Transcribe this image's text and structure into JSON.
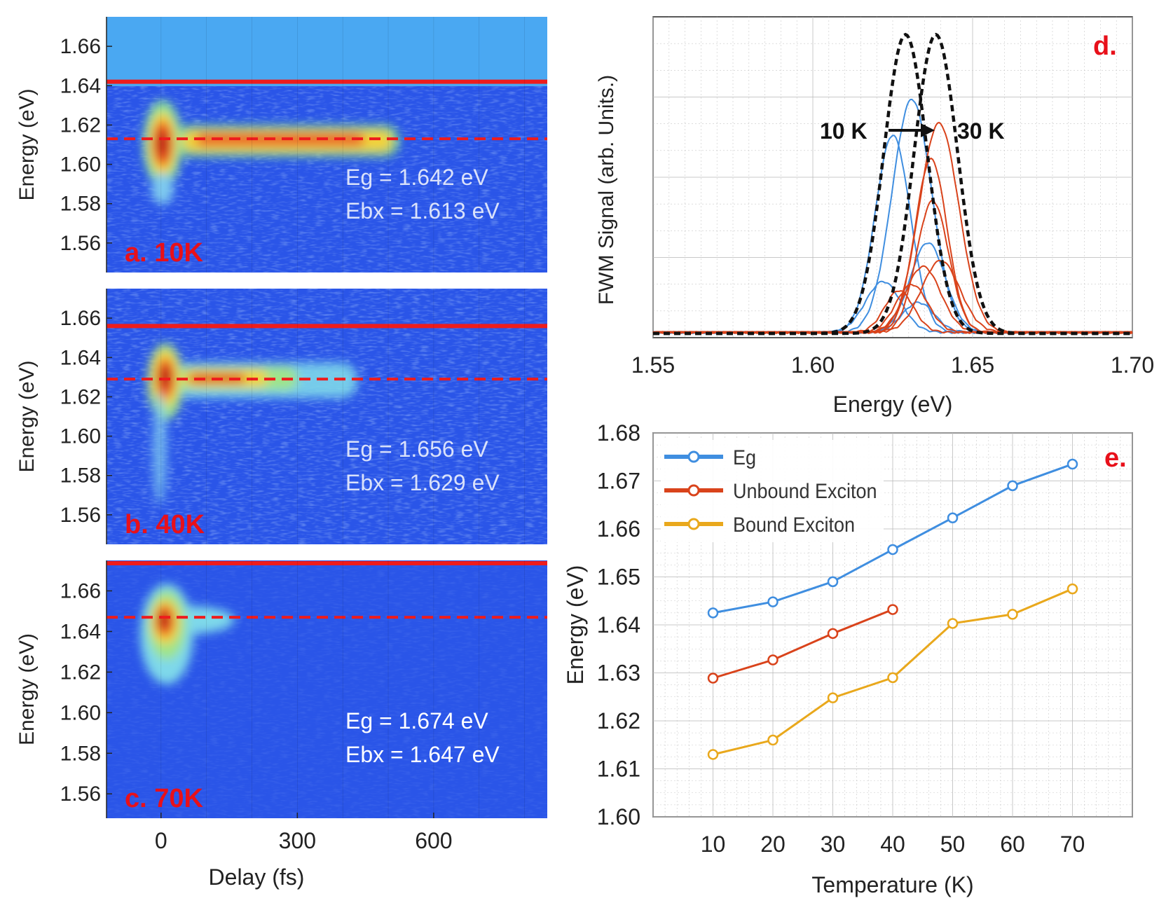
{
  "colors": {
    "blue": "#3f8ee0",
    "red": "#d9431b",
    "orange": "#e9a81c",
    "label_red": "#e8101a",
    "map_bg": "#2a55e8",
    "map_top": "#4aa8f2",
    "black": "#111111",
    "text": "#222222"
  },
  "chart_data": [
    {
      "id": "panel-a",
      "type": "heatmap",
      "panel_label": "a. 10K",
      "ylabel": "Energy (eV)",
      "xlabel": "",
      "xlim": [
        -120,
        850
      ],
      "ylim": [
        1.545,
        1.675
      ],
      "y_ticks": [
        "1.66",
        "1.64",
        "1.62",
        "1.60",
        "1.58",
        "1.56"
      ],
      "y_tick_values": [
        1.66,
        1.64,
        1.62,
        1.6,
        1.58,
        1.56
      ],
      "x_ticks": [],
      "eg_line": 1.642,
      "ebx_line": 1.613,
      "annotation_eg": "Eg = 1.642 eV",
      "annotation_ebx": "Ebx = 1.613 eV",
      "signal": {
        "peak_energy": 1.613,
        "peak_delay": 0,
        "band_until": 520
      }
    },
    {
      "id": "panel-b",
      "type": "heatmap",
      "panel_label": "b. 40K",
      "ylabel": "Energy (eV)",
      "xlabel": "",
      "xlim": [
        -120,
        850
      ],
      "ylim": [
        1.545,
        1.675
      ],
      "y_ticks": [
        "1.66",
        "1.64",
        "1.62",
        "1.60",
        "1.58",
        "1.56"
      ],
      "y_tick_values": [
        1.66,
        1.64,
        1.62,
        1.6,
        1.58,
        1.56
      ],
      "x_ticks": [],
      "eg_line": 1.656,
      "ebx_line": 1.629,
      "annotation_eg": "Eg = 1.656 eV",
      "annotation_ebx": "Ebx = 1.629 eV",
      "signal": {
        "peak_energy": 1.63,
        "peak_delay": 0,
        "band_until": 400
      }
    },
    {
      "id": "panel-c",
      "type": "heatmap",
      "panel_label": "c. 70K",
      "ylabel": "Energy (eV)",
      "xlabel": "Delay (fs)",
      "xlim": [
        -120,
        850
      ],
      "ylim": [
        1.548,
        1.675
      ],
      "y_ticks": [
        "1.66",
        "1.64",
        "1.62",
        "1.60",
        "1.58",
        "1.56"
      ],
      "y_tick_values": [
        1.66,
        1.64,
        1.62,
        1.6,
        1.58,
        1.56
      ],
      "x_ticks": [
        "0",
        "300",
        "600"
      ],
      "x_tick_values": [
        0,
        300,
        600
      ],
      "eg_line": 1.674,
      "ebx_line": 1.647,
      "annotation_eg": "Eg = 1.674 eV",
      "annotation_ebx": "Ebx = 1.647 eV",
      "signal": {
        "peak_energy": 1.648,
        "peak_delay": 0,
        "band_until": 150
      }
    },
    {
      "id": "panel-d",
      "type": "line",
      "panel_label": "d.",
      "xlabel": "Energy (eV)",
      "ylabel": "FWM Signal (arb. Units.)",
      "xlim": [
        1.55,
        1.7
      ],
      "ylim": [
        0,
        1.05
      ],
      "x_ticks": [
        "1.55",
        "1.60",
        "1.65",
        "1.70"
      ],
      "x_tick_values": [
        1.55,
        1.6,
        1.65,
        1.7
      ],
      "arrow_from": "10 K",
      "arrow_to": "30 K",
      "series": [
        {
          "name": "10 K envelope",
          "color": "black",
          "dashed": true,
          "center": 1.629,
          "width": 0.0068,
          "amp": 1.0
        },
        {
          "name": "30 K envelope",
          "color": "black",
          "dashed": true,
          "center": 1.6385,
          "width": 0.0068,
          "amp": 1.0
        },
        {
          "name": "10 K component 1",
          "color": "blue",
          "center": 1.631,
          "width": 0.0062,
          "amp": 0.78
        },
        {
          "name": "10 K component 2",
          "color": "blue",
          "center": 1.625,
          "width": 0.0055,
          "amp": 0.66
        },
        {
          "name": "10 K component 3",
          "color": "blue",
          "center": 1.636,
          "width": 0.0055,
          "amp": 0.3
        },
        {
          "name": "10 K component 4",
          "color": "blue",
          "center": 1.622,
          "width": 0.0055,
          "amp": 0.17
        },
        {
          "name": "10 K component 5",
          "color": "blue",
          "center": 1.633,
          "width": 0.005,
          "amp": 0.1
        },
        {
          "name": "30 K component 1",
          "color": "red",
          "center": 1.6395,
          "width": 0.0062,
          "amp": 0.7
        },
        {
          "name": "30 K component 2",
          "color": "red",
          "center": 1.637,
          "width": 0.005,
          "amp": 0.58
        },
        {
          "name": "30 K component 3",
          "color": "red",
          "center": 1.6375,
          "width": 0.005,
          "amp": 0.44
        },
        {
          "name": "30 K component 4",
          "color": "red",
          "center": 1.6345,
          "width": 0.0055,
          "amp": 0.22
        },
        {
          "name": "30 K component 5",
          "color": "red",
          "center": 1.64,
          "width": 0.006,
          "amp": 0.24
        },
        {
          "name": "30 K component 6",
          "color": "red",
          "center": 1.627,
          "width": 0.0045,
          "amp": 0.14
        },
        {
          "name": "30 K component 7",
          "color": "red",
          "center": 1.631,
          "width": 0.005,
          "amp": 0.16
        }
      ]
    },
    {
      "id": "panel-e",
      "type": "line",
      "panel_label": "e.",
      "xlabel": "Temperature (K)",
      "ylabel": "Energy (eV)",
      "xlim": [
        0,
        80
      ],
      "ylim": [
        1.6,
        1.68
      ],
      "x_ticks": [
        "10",
        "20",
        "30",
        "40",
        "50",
        "60",
        "70"
      ],
      "x_tick_values": [
        10,
        20,
        30,
        40,
        50,
        60,
        70
      ],
      "y_ticks": [
        "1.68",
        "1.67",
        "1.66",
        "1.65",
        "1.64",
        "1.63",
        "1.62",
        "1.61",
        "1.60"
      ],
      "y_tick_values": [
        1.68,
        1.67,
        1.66,
        1.65,
        1.64,
        1.63,
        1.62,
        1.61,
        1.6
      ],
      "legend_position": "top-left",
      "series": [
        {
          "name": "Eg",
          "color": "blue",
          "x": [
            10,
            20,
            30,
            40,
            50,
            60,
            70
          ],
          "y": [
            1.6425,
            1.6448,
            1.649,
            1.6557,
            1.6623,
            1.669,
            1.6735
          ]
        },
        {
          "name": "Unbound Exciton",
          "color": "red",
          "x": [
            10,
            20,
            30,
            40
          ],
          "y": [
            1.6289,
            1.6327,
            1.6382,
            1.6432
          ]
        },
        {
          "name": "Bound Exciton",
          "color": "orange",
          "x": [
            10,
            20,
            30,
            40,
            50,
            60,
            70
          ],
          "y": [
            1.613,
            1.616,
            1.6248,
            1.629,
            1.6403,
            1.6422,
            1.6475
          ]
        }
      ]
    }
  ]
}
